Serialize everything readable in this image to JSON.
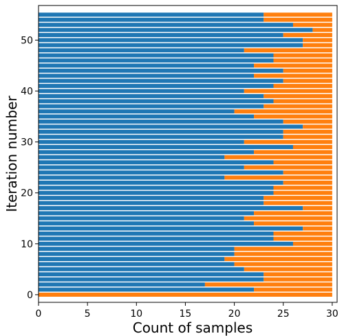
{
  "chart_data": {
    "type": "bar",
    "orientation": "horizontal",
    "stacked": true,
    "xlabel": "Count of samples",
    "ylabel": "Iteration number",
    "xlim": [
      0,
      30.5
    ],
    "ylim": [
      -1.5,
      56.8
    ],
    "xticks": [
      0,
      5,
      10,
      15,
      20,
      25,
      30
    ],
    "yticks": [
      0,
      10,
      20,
      30,
      40,
      50
    ],
    "grid": false,
    "categories": [
      0,
      1,
      2,
      3,
      4,
      5,
      6,
      7,
      8,
      9,
      10,
      11,
      12,
      13,
      14,
      15,
      16,
      17,
      18,
      19,
      20,
      21,
      22,
      23,
      24,
      25,
      26,
      27,
      28,
      29,
      30,
      31,
      32,
      33,
      34,
      35,
      36,
      37,
      38,
      39,
      40,
      41,
      42,
      43,
      44,
      45,
      46,
      47,
      48,
      49,
      50,
      51,
      52,
      53,
      54,
      55
    ],
    "series": [
      {
        "color": "#1f77b4",
        "values": [
          0,
          22,
          17,
          23,
          23,
          21,
          20,
          19,
          20,
          20,
          26,
          24,
          24,
          27,
          22,
          21,
          22,
          27,
          23,
          23,
          24,
          24,
          25,
          19,
          25,
          21,
          24,
          19,
          22,
          26,
          21,
          25,
          25,
          27,
          25,
          22,
          20,
          23,
          24,
          23,
          21,
          24,
          25,
          22,
          25,
          22,
          24,
          24,
          21,
          27,
          27,
          25,
          28,
          26,
          23,
          23
        ]
      },
      {
        "color": "#ff7f0e",
        "values": [
          30,
          8,
          13,
          7,
          7,
          9,
          10,
          11,
          10,
          10,
          4,
          6,
          6,
          3,
          8,
          9,
          8,
          3,
          7,
          7,
          6,
          6,
          5,
          11,
          5,
          9,
          6,
          11,
          8,
          4,
          9,
          5,
          5,
          3,
          5,
          8,
          10,
          7,
          6,
          7,
          9,
          6,
          5,
          8,
          5,
          8,
          6,
          6,
          9,
          3,
          3,
          5,
          2,
          4,
          7,
          7
        ]
      }
    ]
  }
}
